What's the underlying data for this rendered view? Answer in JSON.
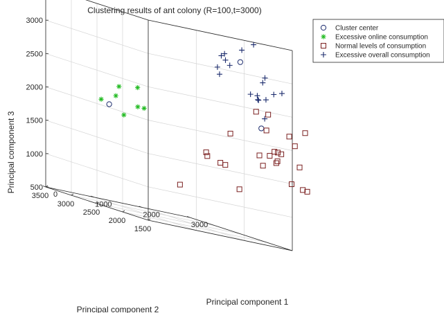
{
  "chart_data": {
    "type": "scatter",
    "title": "Clustering results of ant colony (R=100,t=3000)",
    "xlabel": "Principal component 1",
    "ylabel": "Principal component 2",
    "zlabel": "Principal component 3",
    "xlim": [
      0,
      3000
    ],
    "ylim": [
      1500,
      3500
    ],
    "zlim": [
      500,
      3500
    ],
    "x_ticks": [
      "0",
      "1000",
      "2000",
      "3000"
    ],
    "y_ticks": [
      "3500",
      "3000",
      "2500",
      "2000",
      "1500"
    ],
    "z_ticks": [
      "500",
      "1000",
      "1500",
      "2000",
      "2500",
      "3000",
      "3500"
    ],
    "grid": true,
    "legend_position": "top-right",
    "series": [
      {
        "name": "Cluster center",
        "marker": "circle",
        "color": "#1a2a6c",
        "points": [
          [
            1024,
            3221,
            1966
          ],
          [
            2286,
            1846,
            3132
          ],
          [
            2547,
            1680,
            2219
          ]
        ]
      },
      {
        "name": "Excessive online consumption",
        "marker": "asterisk",
        "color": "#22bb22",
        "points": [
          [
            1011,
            3365,
            2003
          ],
          [
            1184,
            3180,
            2266
          ],
          [
            1126,
            3187,
            2117
          ],
          [
            1160,
            3062,
            1865
          ],
          [
            1322,
            2946,
            2329
          ],
          [
            1346,
            2965,
            2040
          ],
          [
            1411,
            2902,
            2043
          ]
        ]
      },
      {
        "name": "Normal levels of consumption",
        "marker": "square",
        "color": "#7a1f1f",
        "points": [
          [
            1305,
            2103,
            1082
          ],
          [
            1700,
            1963,
            1662
          ],
          [
            1700,
            1940,
            1611
          ],
          [
            1947,
            1917,
            1554
          ],
          [
            1939,
            1813,
            1546
          ],
          [
            2068,
            1835,
            2030
          ],
          [
            2218,
            1799,
            1227
          ],
          [
            2462,
            1702,
            2451
          ],
          [
            2590,
            1587,
            2455
          ],
          [
            2633,
            1661,
            2206
          ],
          [
            2533,
            1704,
            1806
          ],
          [
            2652,
            1615,
            1841
          ],
          [
            2612,
            1709,
            1663
          ],
          [
            2734,
            1540,
            1790
          ],
          [
            2709,
            1576,
            1920
          ],
          [
            2764,
            1562,
            1919
          ],
          [
            2719,
            1549,
            1758
          ],
          [
            2903,
            1469,
            2203
          ],
          [
            2789,
            1517,
            1909
          ],
          [
            2976,
            1427,
            2080
          ],
          [
            3026,
            1382,
            1781
          ],
          [
            3056,
            1302,
            2320
          ],
          [
            2899,
            1419,
            1501
          ],
          [
            3032,
            1325,
            1458
          ],
          [
            3089,
            1292,
            1449
          ]
        ]
      },
      {
        "name": "Excessive overall consumption",
        "marker": "plus",
        "color": "#1a2a6c",
        "points": [
          [
            1932,
            1960,
            2975
          ],
          [
            1924,
            1911,
            2879
          ],
          [
            1980,
            1930,
            3160
          ],
          [
            2034,
            1899,
            3110
          ],
          [
            2115,
            1891,
            3046
          ],
          [
            2040,
            1923,
            3201
          ],
          [
            2308,
            1837,
            3317
          ],
          [
            2437,
            1728,
            3445
          ],
          [
            2391,
            1745,
            2691
          ],
          [
            2493,
            1708,
            2694
          ],
          [
            2497,
            1701,
            2637
          ],
          [
            2508,
            1698,
            2630
          ],
          [
            2573,
            1677,
            2908
          ],
          [
            2634,
            1691,
            2985
          ],
          [
            2739,
            1617,
            2772
          ],
          [
            2824,
            1538,
            2820
          ],
          [
            2621,
            1659,
            2664
          ],
          [
            2631,
            1693,
            2373
          ]
        ]
      }
    ]
  }
}
